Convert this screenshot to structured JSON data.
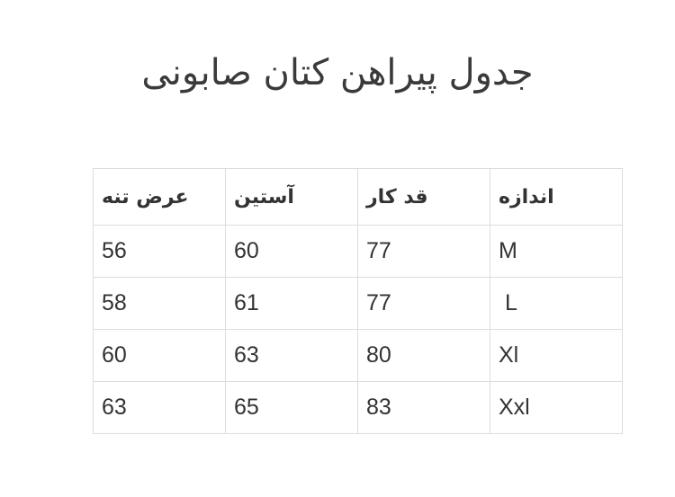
{
  "title": "جدول پیراهن کتان صابونی",
  "table": {
    "headers": [
      "عرض تنه",
      "آستین",
      "قد کار",
      "اندازه"
    ],
    "rows": [
      [
        "56",
        "60",
        "77",
        "M"
      ],
      [
        "58",
        "61",
        "77",
        " L"
      ],
      [
        "60",
        "63",
        "80",
        "Xl"
      ],
      [
        "63",
        "65",
        "83",
        "Xxl"
      ]
    ]
  }
}
